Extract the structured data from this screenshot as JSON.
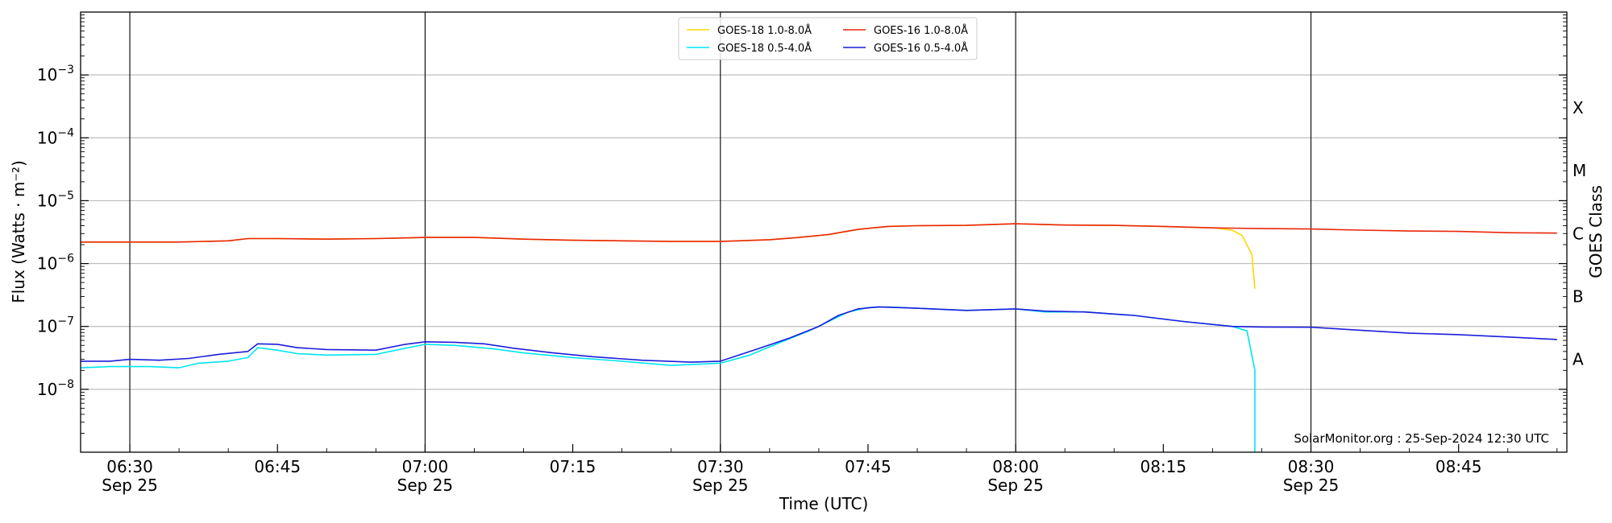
{
  "chart_data": {
    "type": "line",
    "title": "",
    "xlabel": "Time (UTC)",
    "ylabel": "Flux (Watts · m⁻²)",
    "y2label": "GOES Class",
    "yscale": "log",
    "ylim": [
      1e-09,
      0.01
    ],
    "xlim": [
      "06:25",
      "08:56"
    ],
    "grid": "horizontal at decades",
    "legend_position": "top-center",
    "credit": "SolarMonitor.org : 25-Sep-2024 12:30 UTC",
    "x_ticks": [
      {
        "time": "06:30",
        "line1": "06:30",
        "line2": "Sep 25"
      },
      {
        "time": "06:45",
        "line1": "06:45",
        "line2": ""
      },
      {
        "time": "07:00",
        "line1": "07:00",
        "line2": "Sep 25"
      },
      {
        "time": "07:15",
        "line1": "07:15",
        "line2": ""
      },
      {
        "time": "07:30",
        "line1": "07:30",
        "line2": "Sep 25"
      },
      {
        "time": "07:45",
        "line1": "07:45",
        "line2": ""
      },
      {
        "time": "08:00",
        "line1": "08:00",
        "line2": "Sep 25"
      },
      {
        "time": "08:15",
        "line1": "08:15",
        "line2": ""
      },
      {
        "time": "08:30",
        "line1": "08:30",
        "line2": "Sep 25"
      },
      {
        "time": "08:45",
        "line1": "08:45",
        "line2": ""
      }
    ],
    "vertical_markers": [
      "06:30",
      "07:00",
      "07:30",
      "08:00",
      "08:30"
    ],
    "y_ticks": [
      {
        "value": 1e-08,
        "base": "10",
        "exp": "−8"
      },
      {
        "value": 1e-07,
        "base": "10",
        "exp": "−7"
      },
      {
        "value": 1e-06,
        "base": "10",
        "exp": "−6"
      },
      {
        "value": 1e-05,
        "base": "10",
        "exp": "−5"
      },
      {
        "value": 0.0001,
        "base": "10",
        "exp": "−4"
      },
      {
        "value": 0.001,
        "base": "10",
        "exp": "−3"
      }
    ],
    "goes_classes": [
      {
        "label": "A",
        "value": 3e-08
      },
      {
        "label": "B",
        "value": 3e-07
      },
      {
        "label": "C",
        "value": 3e-06
      },
      {
        "label": "M",
        "value": 3e-05
      },
      {
        "label": "X",
        "value": 0.0003
      }
    ],
    "series": [
      {
        "name": "GOES-18 1.0-8.0Å",
        "color": "#ffd700",
        "points": [
          [
            "06:25",
            2.2e-06
          ],
          [
            "06:30",
            2.2e-06
          ],
          [
            "06:35",
            2.2e-06
          ],
          [
            "06:40",
            2.3e-06
          ],
          [
            "06:42",
            2.5e-06
          ],
          [
            "06:45",
            2.5e-06
          ],
          [
            "06:50",
            2.45e-06
          ],
          [
            "06:55",
            2.5e-06
          ],
          [
            "07:00",
            2.6e-06
          ],
          [
            "07:05",
            2.6e-06
          ],
          [
            "07:10",
            2.45e-06
          ],
          [
            "07:15",
            2.35e-06
          ],
          [
            "07:20",
            2.3e-06
          ],
          [
            "07:25",
            2.25e-06
          ],
          [
            "07:30",
            2.25e-06
          ],
          [
            "07:35",
            2.4e-06
          ],
          [
            "07:38",
            2.6e-06
          ],
          [
            "07:41",
            2.9e-06
          ],
          [
            "07:44",
            3.5e-06
          ],
          [
            "07:47",
            3.9e-06
          ],
          [
            "07:50",
            4e-06
          ],
          [
            "07:55",
            4.05e-06
          ],
          [
            "08:00",
            4.3e-06
          ],
          [
            "08:05",
            4.1e-06
          ],
          [
            "08:10",
            4.05e-06
          ],
          [
            "08:15",
            3.9e-06
          ],
          [
            "08:20",
            3.7e-06
          ],
          [
            "08:22",
            3.4e-06
          ],
          [
            "08:23",
            2.8e-06
          ],
          [
            "08:24",
            1.4e-06
          ],
          [
            "08:24.3",
            4e-07
          ]
        ]
      },
      {
        "name": "GOES-16 1.0-8.0Å",
        "color": "#e8260a",
        "points": [
          [
            "06:25",
            2.2e-06
          ],
          [
            "06:30",
            2.2e-06
          ],
          [
            "06:35",
            2.2e-06
          ],
          [
            "06:40",
            2.3e-06
          ],
          [
            "06:42",
            2.5e-06
          ],
          [
            "06:45",
            2.5e-06
          ],
          [
            "06:50",
            2.45e-06
          ],
          [
            "06:55",
            2.5e-06
          ],
          [
            "07:00",
            2.6e-06
          ],
          [
            "07:05",
            2.6e-06
          ],
          [
            "07:10",
            2.45e-06
          ],
          [
            "07:15",
            2.35e-06
          ],
          [
            "07:20",
            2.3e-06
          ],
          [
            "07:25",
            2.25e-06
          ],
          [
            "07:30",
            2.25e-06
          ],
          [
            "07:35",
            2.4e-06
          ],
          [
            "07:38",
            2.6e-06
          ],
          [
            "07:41",
            2.9e-06
          ],
          [
            "07:44",
            3.5e-06
          ],
          [
            "07:47",
            3.9e-06
          ],
          [
            "07:50",
            4e-06
          ],
          [
            "07:55",
            4.05e-06
          ],
          [
            "08:00",
            4.3e-06
          ],
          [
            "08:05",
            4.1e-06
          ],
          [
            "08:10",
            4.05e-06
          ],
          [
            "08:15",
            3.9e-06
          ],
          [
            "08:20",
            3.7e-06
          ],
          [
            "08:25",
            3.6e-06
          ],
          [
            "08:30",
            3.55e-06
          ],
          [
            "08:35",
            3.4e-06
          ],
          [
            "08:40",
            3.3e-06
          ],
          [
            "08:45",
            3.25e-06
          ],
          [
            "08:50",
            3.1e-06
          ],
          [
            "08:55",
            3.05e-06
          ]
        ]
      },
      {
        "name": "GOES-18 0.5-4.0Å",
        "color": "#00e5ee",
        "points": [
          [
            "06:25",
            2.2e-08
          ],
          [
            "06:28",
            2.3e-08
          ],
          [
            "06:32",
            2.3e-08
          ],
          [
            "06:35",
            2.2e-08
          ],
          [
            "06:37",
            2.6e-08
          ],
          [
            "06:40",
            2.8e-08
          ],
          [
            "06:42",
            3.2e-08
          ],
          [
            "06:43",
            4.6e-08
          ],
          [
            "06:45",
            4.2e-08
          ],
          [
            "06:47",
            3.7e-08
          ],
          [
            "06:50",
            3.5e-08
          ],
          [
            "06:55",
            3.6e-08
          ],
          [
            "06:58",
            4.5e-08
          ],
          [
            "07:00",
            5.2e-08
          ],
          [
            "07:03",
            5e-08
          ],
          [
            "07:07",
            4.4e-08
          ],
          [
            "07:10",
            3.8e-08
          ],
          [
            "07:15",
            3.2e-08
          ],
          [
            "07:20",
            2.8e-08
          ],
          [
            "07:25",
            2.4e-08
          ],
          [
            "07:30",
            2.6e-08
          ],
          [
            "07:33",
            3.5e-08
          ],
          [
            "07:36",
            5.5e-08
          ],
          [
            "07:39",
            8.5e-08
          ],
          [
            "07:41",
            1.2e-07
          ],
          [
            "07:43",
            1.7e-07
          ],
          [
            "07:45",
            2e-07
          ],
          [
            "07:47",
            2.05e-07
          ],
          [
            "07:50",
            1.95e-07
          ],
          [
            "07:55",
            1.8e-07
          ],
          [
            "08:00",
            1.9e-07
          ],
          [
            "08:03",
            1.7e-07
          ],
          [
            "08:07",
            1.7e-07
          ],
          [
            "08:12",
            1.5e-07
          ],
          [
            "08:17",
            1.2e-07
          ],
          [
            "08:22",
            1e-07
          ],
          [
            "08:23.5",
            8.5e-08
          ],
          [
            "08:24.3",
            2e-08
          ],
          [
            "08:24.3",
            1e-09
          ]
        ]
      },
      {
        "name": "GOES-16 0.5-4.0Å",
        "color": "#1c1cdc",
        "points": [
          [
            "06:25",
            2.8e-08
          ],
          [
            "06:28",
            2.8e-08
          ],
          [
            "06:30",
            3e-08
          ],
          [
            "06:33",
            2.9e-08
          ],
          [
            "06:36",
            3.1e-08
          ],
          [
            "06:39",
            3.6e-08
          ],
          [
            "06:42",
            4e-08
          ],
          [
            "06:43",
            5.3e-08
          ],
          [
            "06:45",
            5.2e-08
          ],
          [
            "06:47",
            4.6e-08
          ],
          [
            "06:50",
            4.3e-08
          ],
          [
            "06:55",
            4.2e-08
          ],
          [
            "06:58",
            5.2e-08
          ],
          [
            "07:00",
            5.7e-08
          ],
          [
            "07:03",
            5.6e-08
          ],
          [
            "07:06",
            5.3e-08
          ],
          [
            "07:09",
            4.5e-08
          ],
          [
            "07:13",
            3.8e-08
          ],
          [
            "07:17",
            3.3e-08
          ],
          [
            "07:22",
            2.9e-08
          ],
          [
            "07:27",
            2.7e-08
          ],
          [
            "07:30",
            2.8e-08
          ],
          [
            "07:34",
            4.5e-08
          ],
          [
            "07:37",
            6.5e-08
          ],
          [
            "07:40",
            1e-07
          ],
          [
            "07:42",
            1.5e-07
          ],
          [
            "07:44",
            1.9e-07
          ],
          [
            "07:46",
            2.05e-07
          ],
          [
            "07:50",
            1.95e-07
          ],
          [
            "07:55",
            1.8e-07
          ],
          [
            "08:00",
            1.9e-07
          ],
          [
            "08:03",
            1.75e-07
          ],
          [
            "08:07",
            1.7e-07
          ],
          [
            "08:12",
            1.5e-07
          ],
          [
            "08:17",
            1.2e-07
          ],
          [
            "08:22",
            1e-07
          ],
          [
            "08:25",
            9.8e-08
          ],
          [
            "08:30",
            9.7e-08
          ],
          [
            "08:35",
            8.7e-08
          ],
          [
            "08:40",
            7.8e-08
          ],
          [
            "08:45",
            7.4e-08
          ],
          [
            "08:50",
            6.8e-08
          ],
          [
            "08:55",
            6.2e-08
          ]
        ]
      }
    ],
    "legend": [
      {
        "name": "GOES-18 1.0-8.0Å",
        "color": "#ffd700"
      },
      {
        "name": "GOES-18 0.5-4.0Å",
        "color": "#00e5ee"
      },
      {
        "name": "GOES-16 1.0-8.0Å",
        "color": "#e8260a"
      },
      {
        "name": "GOES-16 0.5-4.0Å",
        "color": "#1c1cdc"
      }
    ]
  }
}
